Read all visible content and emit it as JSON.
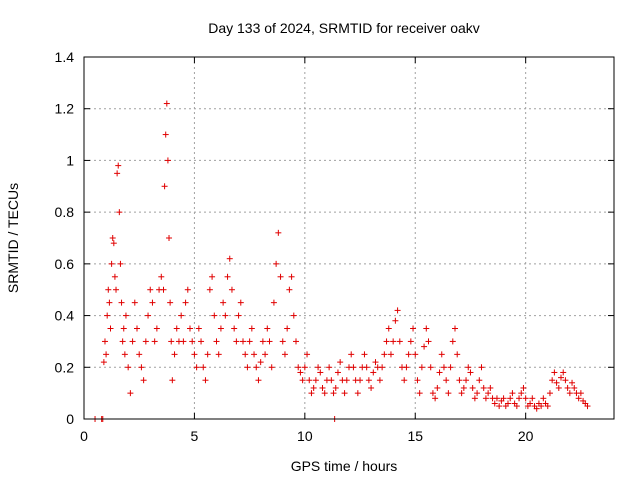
{
  "chart_data": {
    "type": "scatter",
    "title": "Day 133 of 2024, SRMTID for receiver oakv",
    "xlabel": "GPS time / hours",
    "ylabel": "SRMTID / TECUs",
    "xlim": [
      0,
      24
    ],
    "ylim": [
      0,
      1.4
    ],
    "xticks": [
      0,
      5,
      10,
      15,
      20
    ],
    "yticks": [
      0,
      0.2,
      0.4,
      0.6,
      0.8,
      1,
      1.2,
      1.4
    ],
    "xtick_labels": [
      "0",
      "5",
      "10",
      "15",
      "20"
    ],
    "ytick_labels": [
      "0",
      "0.2",
      "0.4",
      "0.6",
      "0.8",
      "1",
      "1.2",
      "1.4"
    ],
    "grid": true,
    "marker": "+",
    "color": "#e00000",
    "series": [
      {
        "name": "oakv",
        "points": [
          [
            0.5,
            0.0
          ],
          [
            0.8,
            0.0
          ],
          [
            0.85,
            0.0
          ],
          [
            0.9,
            0.22
          ],
          [
            0.95,
            0.3
          ],
          [
            1.0,
            0.25
          ],
          [
            1.05,
            0.4
          ],
          [
            1.1,
            0.5
          ],
          [
            1.15,
            0.45
          ],
          [
            1.2,
            0.35
          ],
          [
            1.25,
            0.6
          ],
          [
            1.3,
            0.7
          ],
          [
            1.35,
            0.68
          ],
          [
            1.4,
            0.55
          ],
          [
            1.45,
            0.5
          ],
          [
            1.5,
            0.95
          ],
          [
            1.55,
            0.98
          ],
          [
            1.6,
            0.8
          ],
          [
            1.65,
            0.6
          ],
          [
            1.7,
            0.45
          ],
          [
            1.75,
            0.3
          ],
          [
            1.8,
            0.35
          ],
          [
            1.85,
            0.25
          ],
          [
            1.9,
            0.4
          ],
          [
            2.0,
            0.2
          ],
          [
            2.1,
            0.1
          ],
          [
            2.2,
            0.3
          ],
          [
            2.3,
            0.45
          ],
          [
            2.4,
            0.35
          ],
          [
            2.5,
            0.25
          ],
          [
            2.6,
            0.2
          ],
          [
            2.7,
            0.15
          ],
          [
            2.8,
            0.3
          ],
          [
            2.9,
            0.4
          ],
          [
            3.0,
            0.5
          ],
          [
            3.1,
            0.45
          ],
          [
            3.2,
            0.3
          ],
          [
            3.3,
            0.35
          ],
          [
            3.4,
            0.5
          ],
          [
            3.5,
            0.55
          ],
          [
            3.6,
            0.5
          ],
          [
            3.65,
            0.9
          ],
          [
            3.7,
            1.1
          ],
          [
            3.75,
            1.22
          ],
          [
            3.8,
            1.0
          ],
          [
            3.85,
            0.7
          ],
          [
            3.9,
            0.45
          ],
          [
            3.95,
            0.3
          ],
          [
            4.0,
            0.15
          ],
          [
            4.1,
            0.25
          ],
          [
            4.2,
            0.35
          ],
          [
            4.3,
            0.3
          ],
          [
            4.4,
            0.4
          ],
          [
            4.5,
            0.3
          ],
          [
            4.6,
            0.45
          ],
          [
            4.7,
            0.5
          ],
          [
            4.8,
            0.35
          ],
          [
            4.9,
            0.3
          ],
          [
            5.0,
            0.25
          ],
          [
            5.1,
            0.2
          ],
          [
            5.2,
            0.35
          ],
          [
            5.3,
            0.3
          ],
          [
            5.4,
            0.2
          ],
          [
            5.5,
            0.15
          ],
          [
            5.6,
            0.25
          ],
          [
            5.7,
            0.5
          ],
          [
            5.8,
            0.55
          ],
          [
            5.9,
            0.4
          ],
          [
            6.0,
            0.3
          ],
          [
            6.1,
            0.25
          ],
          [
            6.2,
            0.35
          ],
          [
            6.3,
            0.45
          ],
          [
            6.4,
            0.4
          ],
          [
            6.5,
            0.55
          ],
          [
            6.6,
            0.62
          ],
          [
            6.7,
            0.5
          ],
          [
            6.8,
            0.35
          ],
          [
            6.9,
            0.3
          ],
          [
            7.0,
            0.4
          ],
          [
            7.1,
            0.45
          ],
          [
            7.2,
            0.3
          ],
          [
            7.3,
            0.25
          ],
          [
            7.4,
            0.2
          ],
          [
            7.5,
            0.3
          ],
          [
            7.6,
            0.35
          ],
          [
            7.7,
            0.25
          ],
          [
            7.8,
            0.2
          ],
          [
            7.9,
            0.15
          ],
          [
            8.0,
            0.22
          ],
          [
            8.1,
            0.3
          ],
          [
            8.2,
            0.25
          ],
          [
            8.3,
            0.35
          ],
          [
            8.4,
            0.3
          ],
          [
            8.5,
            0.2
          ],
          [
            8.6,
            0.45
          ],
          [
            8.7,
            0.6
          ],
          [
            8.8,
            0.72
          ],
          [
            8.9,
            0.55
          ],
          [
            9.0,
            0.3
          ],
          [
            9.1,
            0.25
          ],
          [
            9.2,
            0.35
          ],
          [
            9.3,
            0.5
          ],
          [
            9.4,
            0.55
          ],
          [
            9.5,
            0.4
          ],
          [
            9.6,
            0.3
          ],
          [
            9.7,
            0.2
          ],
          [
            9.8,
            0.18
          ],
          [
            9.9,
            0.15
          ],
          [
            10.0,
            0.2
          ],
          [
            10.1,
            0.25
          ],
          [
            10.2,
            0.15
          ],
          [
            10.3,
            0.1
          ],
          [
            10.4,
            0.12
          ],
          [
            10.5,
            0.15
          ],
          [
            10.6,
            0.2
          ],
          [
            10.7,
            0.18
          ],
          [
            10.8,
            0.12
          ],
          [
            10.9,
            0.1
          ],
          [
            11.0,
            0.15
          ],
          [
            11.1,
            0.2
          ],
          [
            11.2,
            0.15
          ],
          [
            11.3,
            0.1
          ],
          [
            11.35,
            0.0
          ],
          [
            11.4,
            0.12
          ],
          [
            11.5,
            0.18
          ],
          [
            11.6,
            0.22
          ],
          [
            11.7,
            0.15
          ],
          [
            11.8,
            0.1
          ],
          [
            11.9,
            0.15
          ],
          [
            12.0,
            0.2
          ],
          [
            12.1,
            0.25
          ],
          [
            12.2,
            0.2
          ],
          [
            12.3,
            0.15
          ],
          [
            12.4,
            0.1
          ],
          [
            12.5,
            0.15
          ],
          [
            12.6,
            0.2
          ],
          [
            12.7,
            0.25
          ],
          [
            12.8,
            0.2
          ],
          [
            12.9,
            0.15
          ],
          [
            13.0,
            0.12
          ],
          [
            13.1,
            0.18
          ],
          [
            13.2,
            0.22
          ],
          [
            13.3,
            0.2
          ],
          [
            13.4,
            0.15
          ],
          [
            13.5,
            0.2
          ],
          [
            13.6,
            0.25
          ],
          [
            13.7,
            0.3
          ],
          [
            13.8,
            0.35
          ],
          [
            13.9,
            0.25
          ],
          [
            14.0,
            0.3
          ],
          [
            14.1,
            0.38
          ],
          [
            14.2,
            0.42
          ],
          [
            14.3,
            0.3
          ],
          [
            14.4,
            0.2
          ],
          [
            14.5,
            0.15
          ],
          [
            14.6,
            0.2
          ],
          [
            14.7,
            0.25
          ],
          [
            14.8,
            0.3
          ],
          [
            14.9,
            0.35
          ],
          [
            15.0,
            0.25
          ],
          [
            15.1,
            0.15
          ],
          [
            15.2,
            0.1
          ],
          [
            15.3,
            0.2
          ],
          [
            15.4,
            0.28
          ],
          [
            15.5,
            0.35
          ],
          [
            15.6,
            0.3
          ],
          [
            15.7,
            0.2
          ],
          [
            15.8,
            0.1
          ],
          [
            15.9,
            0.08
          ],
          [
            16.0,
            0.12
          ],
          [
            16.1,
            0.18
          ],
          [
            16.2,
            0.25
          ],
          [
            16.3,
            0.2
          ],
          [
            16.4,
            0.15
          ],
          [
            16.5,
            0.1
          ],
          [
            16.6,
            0.2
          ],
          [
            16.7,
            0.3
          ],
          [
            16.8,
            0.35
          ],
          [
            16.9,
            0.25
          ],
          [
            17.0,
            0.15
          ],
          [
            17.1,
            0.1
          ],
          [
            17.2,
            0.12
          ],
          [
            17.3,
            0.15
          ],
          [
            17.4,
            0.2
          ],
          [
            17.5,
            0.18
          ],
          [
            17.6,
            0.12
          ],
          [
            17.7,
            0.08
          ],
          [
            17.8,
            0.1
          ],
          [
            17.9,
            0.15
          ],
          [
            18.0,
            0.2
          ],
          [
            18.1,
            0.12
          ],
          [
            18.2,
            0.08
          ],
          [
            18.3,
            0.1
          ],
          [
            18.4,
            0.12
          ],
          [
            18.5,
            0.08
          ],
          [
            18.6,
            0.06
          ],
          [
            18.7,
            0.08
          ],
          [
            18.8,
            0.05
          ],
          [
            18.9,
            0.07
          ],
          [
            19.0,
            0.08
          ],
          [
            19.1,
            0.05
          ],
          [
            19.2,
            0.06
          ],
          [
            19.3,
            0.08
          ],
          [
            19.4,
            0.1
          ],
          [
            19.5,
            0.06
          ],
          [
            19.6,
            0.05
          ],
          [
            19.7,
            0.08
          ],
          [
            19.8,
            0.1
          ],
          [
            19.9,
            0.12
          ],
          [
            20.0,
            0.08
          ],
          [
            20.1,
            0.05
          ],
          [
            20.2,
            0.06
          ],
          [
            20.3,
            0.08
          ],
          [
            20.4,
            0.05
          ],
          [
            20.5,
            0.04
          ],
          [
            20.6,
            0.06
          ],
          [
            20.7,
            0.05
          ],
          [
            20.8,
            0.08
          ],
          [
            20.9,
            0.06
          ],
          [
            21.0,
            0.05
          ],
          [
            21.1,
            0.1
          ],
          [
            21.2,
            0.15
          ],
          [
            21.3,
            0.18
          ],
          [
            21.4,
            0.14
          ],
          [
            21.5,
            0.12
          ],
          [
            21.6,
            0.16
          ],
          [
            21.7,
            0.18
          ],
          [
            21.8,
            0.15
          ],
          [
            21.9,
            0.12
          ],
          [
            22.0,
            0.1
          ],
          [
            22.1,
            0.14
          ],
          [
            22.2,
            0.12
          ],
          [
            22.3,
            0.1
          ],
          [
            22.4,
            0.08
          ],
          [
            22.5,
            0.1
          ],
          [
            22.6,
            0.07
          ],
          [
            22.7,
            0.06
          ],
          [
            22.8,
            0.05
          ]
        ]
      }
    ]
  }
}
